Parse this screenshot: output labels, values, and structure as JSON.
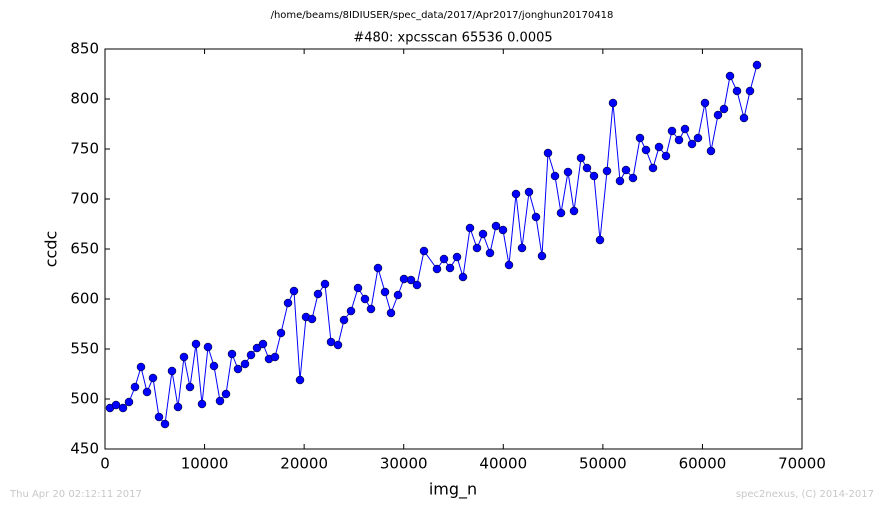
{
  "chart_data": {
    "type": "line",
    "header": "/home/beams/8IDIUSER/spec_data/2017/Apr2017/jonghun20170418",
    "title": "#480: xpcsscan 65536 0.0005",
    "xlabel": "img_n",
    "ylabel": "ccdc",
    "footer_left": "Thu Apr 20 02:12:11 2017",
    "footer_right": "spec2nexus, (C) 2014-2017",
    "color": "#0000ff",
    "x": [
      502,
      1105,
      1808,
      2410,
      3013,
      3615,
      4218,
      4821,
      5423,
      6026,
      6729,
      7331,
      7934,
      8537,
      9139,
      9742,
      10344,
      10947,
      11549,
      12152,
      12755,
      13357,
      14060,
      14663,
      15265,
      15868,
      16470,
      17073,
      17676,
      18379,
      18981,
      19584,
      20186,
      20789,
      21392,
      22095,
      22697,
      23400,
      24003,
      24706,
      25409,
      26112,
      26714,
      27417,
      28120,
      28723,
      29426,
      30029,
      30732,
      31334,
      32037,
      33343,
      34046,
      34648,
      35351,
      35954,
      36657,
      37360,
      37962,
      38665,
      39268,
      39971,
      40574,
      41277,
      41879,
      42582,
      43285,
      43888,
      44491,
      45194,
      45796,
      46499,
      47102,
      47805,
      48407,
      49110,
      49713,
      50416,
      51018,
      51721,
      52324,
      53027,
      53730,
      54333,
      55036,
      55638,
      56341,
      56944,
      57647,
      58249,
      58952,
      59555,
      60258,
      60860,
      61563,
      62166,
      62769,
      63472,
      64175,
      64777,
      65480
    ],
    "values": [
      491,
      494,
      491,
      497,
      512,
      532,
      507,
      521,
      482,
      475,
      528,
      492,
      542,
      512,
      555,
      495,
      552,
      533,
      498,
      505,
      545,
      530,
      535,
      544,
      551,
      555,
      540,
      542,
      566,
      596,
      608,
      519,
      582,
      580,
      605,
      615,
      557,
      554,
      579,
      588,
      611,
      600,
      590,
      631,
      607,
      586,
      604,
      620,
      619,
      614,
      648,
      630,
      640,
      631,
      642,
      622,
      671,
      651,
      665,
      646,
      673,
      669,
      634,
      705,
      651,
      707,
      682,
      643,
      746,
      723,
      686,
      727,
      688,
      741,
      731,
      723,
      659,
      728,
      796,
      718,
      729,
      721,
      761,
      749,
      731,
      752,
      743,
      768,
      759,
      770,
      755,
      761,
      796,
      748,
      784,
      790,
      823,
      808,
      781,
      808,
      834
    ],
    "xlim": [
      0,
      70000
    ],
    "ylim": [
      450,
      850
    ],
    "xticks": [
      0,
      10000,
      20000,
      30000,
      40000,
      50000,
      60000,
      70000
    ],
    "yticks": [
      450,
      500,
      550,
      600,
      650,
      700,
      750,
      800,
      850
    ]
  }
}
